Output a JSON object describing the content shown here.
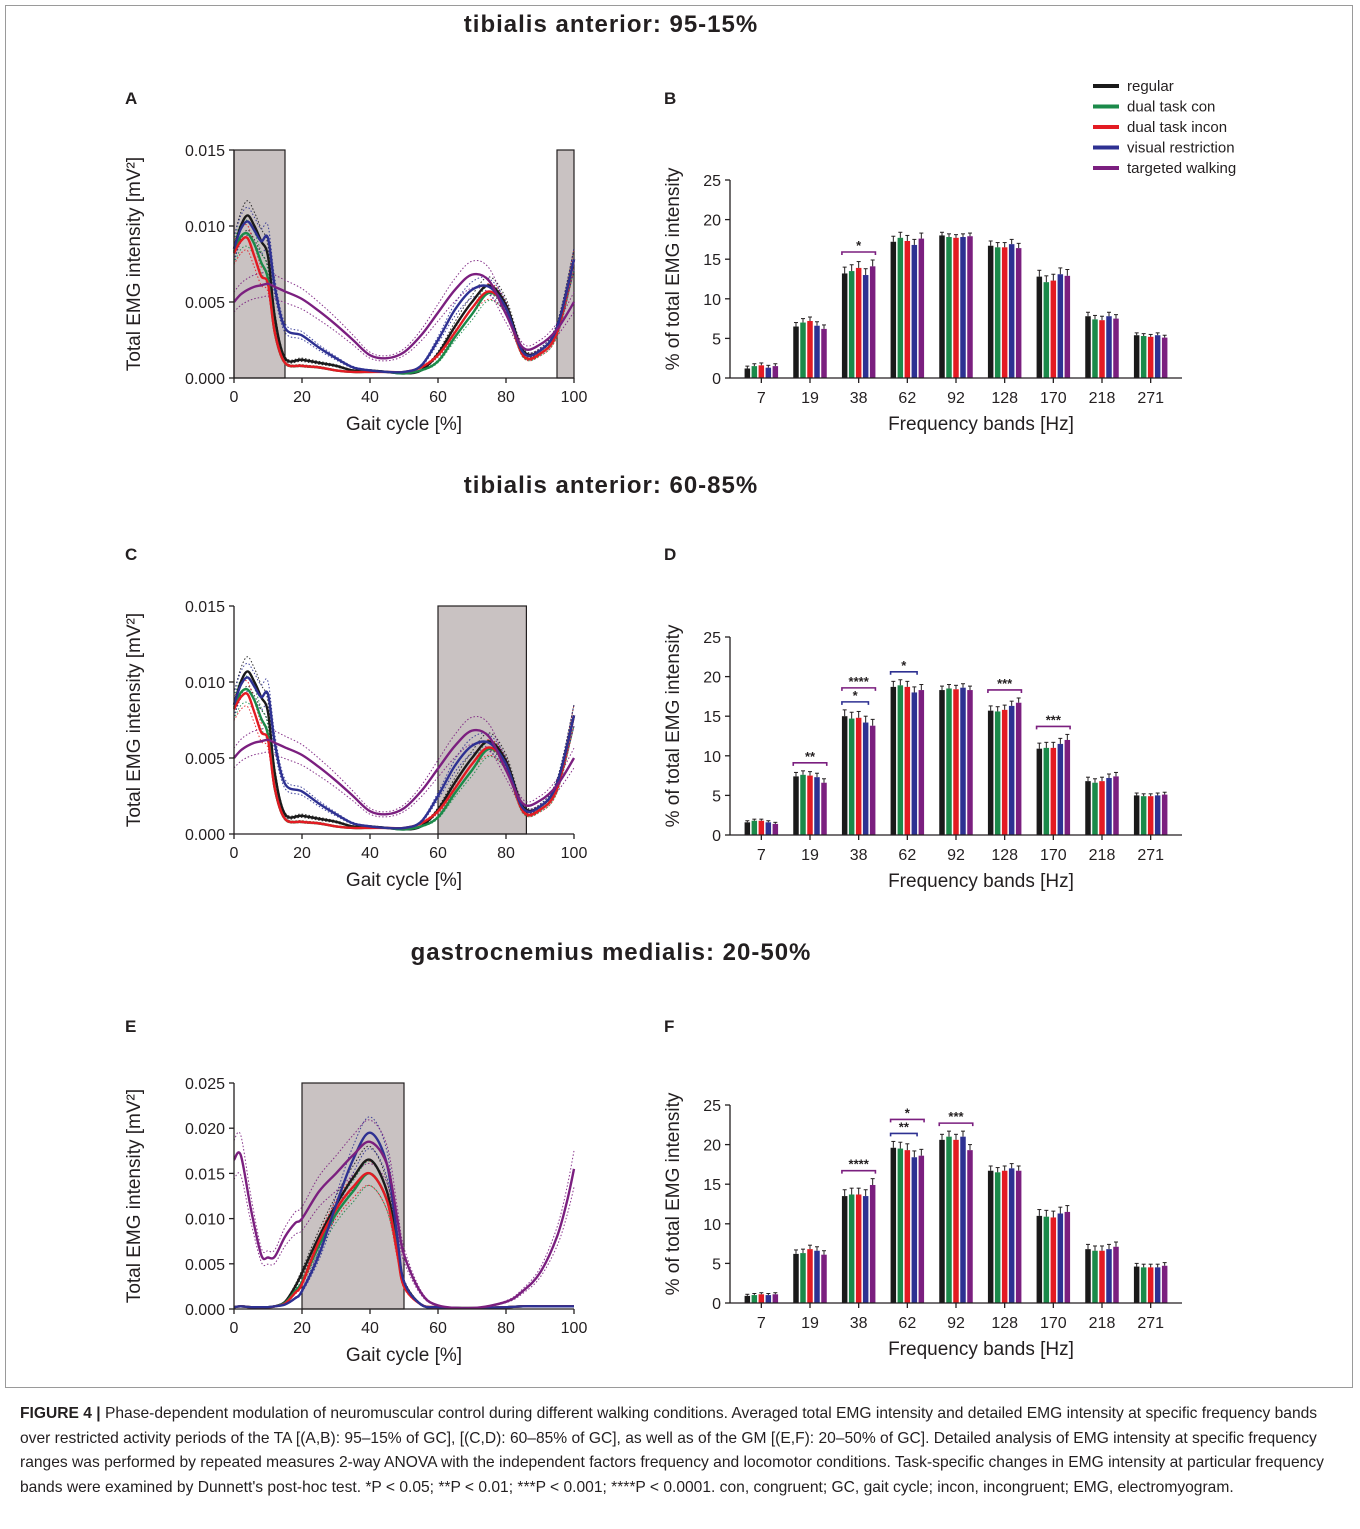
{
  "colors": {
    "regular": "#1a1a1a",
    "dual_con": "#1b8a4a",
    "dual_incon": "#e31b23",
    "visual": "#2e3192",
    "targeted": "#7b1f7f",
    "shade": "#c9c2c2"
  },
  "legend": [
    {
      "label": "regular",
      "color": "#1a1a1a"
    },
    {
      "label": "dual task con",
      "color": "#1b8a4a"
    },
    {
      "label": "dual task incon",
      "color": "#e31b23"
    },
    {
      "label": "visual restriction",
      "color": "#2e3192"
    },
    {
      "label": "targeted walking",
      "color": "#7b1f7f"
    }
  ],
  "caption": {
    "lead": "FIGURE 4 |",
    "text": "Phase-dependent modulation of neuromuscular control during different walking conditions. Averaged total EMG intensity and detailed EMG intensity at specific frequency bands over restricted activity periods of the TA [(A,B): 95–15% of GC], [(C,D): 60–85% of GC], as well as of the GM [(E,F): 20–50% of GC]. Detailed analysis of EMG intensity at specific frequency ranges was performed by repeated measures 2-way ANOVA with the independent factors frequency and locomotor conditions. Task-specific changes in EMG intensity at particular frequency bands were examined by Dunnett's post-hoc test. *P < 0.05; **P < 0.01; ***P < 0.001; ****P < 0.0001. con, congruent; GC, gait cycle; incon, incongruent; EMG, electromyogram."
  },
  "chart_data": [
    {
      "panel": "A",
      "section_title": "tibialis anterior: 95-15%",
      "type": "line",
      "xlabel": "Gait cycle [%]",
      "ylabel": "Total EMG intensity [mV²]",
      "xlim": [
        0,
        100
      ],
      "ylim": [
        0,
        0.015
      ],
      "xticks": [
        0,
        20,
        40,
        60,
        80,
        100
      ],
      "yticks": [
        "0.000",
        "0.005",
        "0.010",
        "0.015"
      ],
      "shaded": [
        [
          0,
          15
        ],
        [
          95,
          100
        ]
      ],
      "x": [
        0,
        2,
        4,
        6,
        8,
        10,
        12,
        15,
        20,
        25,
        30,
        35,
        40,
        45,
        50,
        55,
        60,
        65,
        70,
        75,
        80,
        85,
        90,
        95,
        100
      ],
      "series": [
        {
          "key": "regular",
          "values": [
            0.0085,
            0.01,
            0.0107,
            0.01,
            0.009,
            0.008,
            0.004,
            0.0013,
            0.0012,
            0.001,
            0.0008,
            0.0005,
            0.0005,
            0.0004,
            0.0003,
            0.0005,
            0.0016,
            0.0034,
            0.005,
            0.0061,
            0.0048,
            0.0018,
            0.0018,
            0.0033,
            0.0078
          ]
        },
        {
          "key": "dual_con",
          "values": [
            0.0083,
            0.0093,
            0.0095,
            0.0088,
            0.0076,
            0.0065,
            0.003,
            0.001,
            0.0008,
            0.0007,
            0.0005,
            0.0004,
            0.0004,
            0.0004,
            0.0003,
            0.0005,
            0.0011,
            0.0027,
            0.0042,
            0.0056,
            0.0046,
            0.0015,
            0.0016,
            0.003,
            0.0078
          ]
        },
        {
          "key": "dual_incon",
          "values": [
            0.0082,
            0.009,
            0.0092,
            0.008,
            0.0067,
            0.0062,
            0.003,
            0.001,
            0.0008,
            0.0007,
            0.0005,
            0.0004,
            0.0004,
            0.0004,
            0.0004,
            0.0007,
            0.0015,
            0.003,
            0.0046,
            0.0057,
            0.0046,
            0.0015,
            0.0016,
            0.003,
            0.0078
          ]
        },
        {
          "key": "visual",
          "values": [
            0.0085,
            0.0098,
            0.0103,
            0.0097,
            0.009,
            0.0092,
            0.006,
            0.0033,
            0.0028,
            0.002,
            0.0013,
            0.0007,
            0.0005,
            0.0004,
            0.0004,
            0.0008,
            0.0025,
            0.0045,
            0.0058,
            0.006,
            0.0046,
            0.0017,
            0.0018,
            0.0033,
            0.0078
          ]
        },
        {
          "key": "targeted",
          "values": [
            0.005,
            0.0055,
            0.0058,
            0.006,
            0.0061,
            0.0062,
            0.006,
            0.0057,
            0.0052,
            0.0044,
            0.0035,
            0.0025,
            0.0015,
            0.0013,
            0.0017,
            0.0028,
            0.0043,
            0.0058,
            0.0068,
            0.0064,
            0.0042,
            0.002,
            0.0022,
            0.0032,
            0.005
          ]
        }
      ]
    },
    {
      "panel": "B",
      "type": "bar",
      "xlabel": "Frequency bands [Hz]",
      "ylabel": "% of total EMG intensity",
      "ylim": [
        0,
        25
      ],
      "yticks": [
        0,
        5,
        10,
        15,
        20,
        25
      ],
      "categories": [
        "7",
        "19",
        "38",
        "62",
        "92",
        "128",
        "170",
        "218",
        "271"
      ],
      "series": [
        {
          "key": "regular",
          "values": [
            1.2,
            6.5,
            13.2,
            17.2,
            18.0,
            16.7,
            12.8,
            7.8,
            5.4
          ]
        },
        {
          "key": "dual_con",
          "values": [
            1.5,
            7.0,
            13.5,
            17.7,
            17.8,
            16.5,
            12.1,
            7.4,
            5.3
          ]
        },
        {
          "key": "dual_incon",
          "values": [
            1.6,
            7.2,
            13.9,
            17.3,
            17.7,
            16.5,
            12.3,
            7.3,
            5.2
          ]
        },
        {
          "key": "visual",
          "values": [
            1.3,
            6.6,
            13.0,
            16.8,
            17.8,
            16.9,
            13.1,
            7.8,
            5.4
          ]
        },
        {
          "key": "targeted",
          "values": [
            1.5,
            6.2,
            14.1,
            17.6,
            17.9,
            16.4,
            12.9,
            7.5,
            5.1
          ]
        }
      ],
      "errors": [
        0.3,
        0.5,
        0.8,
        0.7,
        0.4,
        0.6,
        0.8,
        0.5,
        0.3
      ],
      "significance": [
        {
          "category": "38",
          "to": "targeted",
          "label": "*",
          "color": "targeted",
          "level": 0
        }
      ]
    },
    {
      "panel": "C",
      "section_title": "tibialis anterior: 60-85%",
      "type": "line",
      "xlabel": "Gait cycle [%]",
      "ylabel": "Total EMG intensity [mV²]",
      "xlim": [
        0,
        100
      ],
      "ylim": [
        0,
        0.015
      ],
      "xticks": [
        0,
        20,
        40,
        60,
        80,
        100
      ],
      "yticks": [
        "0.000",
        "0.005",
        "0.010",
        "0.015"
      ],
      "shaded": [
        [
          60,
          86
        ]
      ],
      "x": [
        0,
        2,
        4,
        6,
        8,
        10,
        12,
        15,
        20,
        25,
        30,
        35,
        40,
        45,
        50,
        55,
        60,
        65,
        70,
        75,
        80,
        85,
        90,
        95,
        100
      ],
      "series": [
        {
          "key": "regular",
          "values": [
            0.0085,
            0.01,
            0.0107,
            0.01,
            0.009,
            0.008,
            0.004,
            0.0013,
            0.0012,
            0.001,
            0.0008,
            0.0005,
            0.0005,
            0.0004,
            0.0003,
            0.0005,
            0.0016,
            0.0034,
            0.005,
            0.0061,
            0.0048,
            0.0018,
            0.0018,
            0.0033,
            0.0078
          ]
        },
        {
          "key": "dual_con",
          "values": [
            0.0083,
            0.0093,
            0.0095,
            0.0088,
            0.0076,
            0.0065,
            0.003,
            0.001,
            0.0008,
            0.0007,
            0.0005,
            0.0004,
            0.0004,
            0.0004,
            0.0003,
            0.0005,
            0.0011,
            0.0027,
            0.0042,
            0.0056,
            0.0046,
            0.0015,
            0.0016,
            0.003,
            0.0078
          ]
        },
        {
          "key": "dual_incon",
          "values": [
            0.0082,
            0.009,
            0.0092,
            0.008,
            0.0067,
            0.0062,
            0.003,
            0.001,
            0.0008,
            0.0007,
            0.0005,
            0.0004,
            0.0004,
            0.0004,
            0.0004,
            0.0007,
            0.0015,
            0.003,
            0.0046,
            0.0057,
            0.0046,
            0.0015,
            0.0016,
            0.003,
            0.0078
          ]
        },
        {
          "key": "visual",
          "values": [
            0.0085,
            0.0098,
            0.0103,
            0.0097,
            0.009,
            0.0092,
            0.006,
            0.0033,
            0.0028,
            0.002,
            0.0013,
            0.0007,
            0.0005,
            0.0004,
            0.0004,
            0.0008,
            0.0025,
            0.0045,
            0.0058,
            0.006,
            0.0046,
            0.0017,
            0.0018,
            0.0033,
            0.0078
          ]
        },
        {
          "key": "targeted",
          "values": [
            0.005,
            0.0055,
            0.0058,
            0.006,
            0.0061,
            0.0062,
            0.006,
            0.0057,
            0.0052,
            0.0044,
            0.0035,
            0.0025,
            0.0015,
            0.0013,
            0.0017,
            0.0028,
            0.0043,
            0.0058,
            0.0068,
            0.0064,
            0.0042,
            0.002,
            0.0022,
            0.0032,
            0.005
          ]
        }
      ]
    },
    {
      "panel": "D",
      "type": "bar",
      "xlabel": "Frequency bands [Hz]",
      "ylabel": "% of total EMG intensity",
      "ylim": [
        0,
        25
      ],
      "yticks": [
        0,
        5,
        10,
        15,
        20,
        25
      ],
      "categories": [
        "7",
        "19",
        "38",
        "62",
        "92",
        "128",
        "170",
        "218",
        "271"
      ],
      "series": [
        {
          "key": "regular",
          "values": [
            1.6,
            7.4,
            15.0,
            18.7,
            18.3,
            15.7,
            10.9,
            6.8,
            5.0
          ]
        },
        {
          "key": "dual_con",
          "values": [
            1.8,
            7.6,
            14.7,
            18.9,
            18.5,
            15.6,
            11.0,
            6.6,
            4.9
          ]
        },
        {
          "key": "dual_incon",
          "values": [
            1.8,
            7.5,
            14.8,
            18.7,
            18.4,
            15.8,
            11.0,
            6.8,
            4.9
          ]
        },
        {
          "key": "visual",
          "values": [
            1.6,
            7.3,
            14.2,
            18.0,
            18.6,
            16.3,
            11.5,
            7.2,
            5.0
          ]
        },
        {
          "key": "targeted",
          "values": [
            1.4,
            6.6,
            13.8,
            18.3,
            18.3,
            16.7,
            12.0,
            7.4,
            5.1
          ]
        }
      ],
      "errors": [
        0.2,
        0.5,
        0.8,
        0.7,
        0.5,
        0.6,
        0.7,
        0.5,
        0.3
      ],
      "significance": [
        {
          "category": "19",
          "to": "targeted",
          "label": "**",
          "color": "targeted",
          "level": 0
        },
        {
          "category": "38",
          "to": "visual",
          "label": "*",
          "color": "visual",
          "level": 0
        },
        {
          "category": "38",
          "to": "targeted",
          "label": "****",
          "color": "targeted",
          "level": 1
        },
        {
          "category": "62",
          "to": "visual",
          "label": "*",
          "color": "visual",
          "level": 0
        },
        {
          "category": "128",
          "to": "targeted",
          "label": "***",
          "color": "targeted",
          "level": 0
        },
        {
          "category": "170",
          "to": "targeted",
          "label": "***",
          "color": "targeted",
          "level": 0
        }
      ]
    },
    {
      "panel": "E",
      "section_title": "gastrocnemius medialis: 20-50%",
      "type": "line",
      "xlabel": "Gait cycle [%]",
      "ylabel": "Total EMG intensity [mV²]",
      "xlim": [
        0,
        100
      ],
      "ylim": [
        0,
        0.025
      ],
      "xticks": [
        0,
        20,
        40,
        60,
        80,
        100
      ],
      "yticks": [
        "0.000",
        "0.005",
        "0.010",
        "0.015",
        "0.020",
        "0.025"
      ],
      "shaded": [
        [
          20,
          50
        ]
      ],
      "x": [
        0,
        2,
        5,
        8,
        10,
        12,
        15,
        18,
        20,
        25,
        30,
        35,
        40,
        45,
        48,
        50,
        55,
        60,
        70,
        80,
        85,
        90,
        95,
        98,
        100
      ],
      "series": [
        {
          "key": "regular",
          "values": [
            0.0002,
            0.0003,
            0.0002,
            0.0002,
            0.0002,
            0.0003,
            0.0008,
            0.0025,
            0.004,
            0.008,
            0.0115,
            0.0145,
            0.0165,
            0.013,
            0.007,
            0.003,
            0.0005,
            0.0002,
            0.0001,
            0.0002,
            0.0003,
            0.0003,
            0.0003,
            0.0003,
            0.0003
          ]
        },
        {
          "key": "dual_con",
          "values": [
            0.0002,
            0.0003,
            0.0002,
            0.0002,
            0.0002,
            0.0003,
            0.0007,
            0.002,
            0.003,
            0.007,
            0.0105,
            0.013,
            0.015,
            0.012,
            0.0065,
            0.0028,
            0.0005,
            0.0002,
            0.0001,
            0.0002,
            0.0003,
            0.0003,
            0.0003,
            0.0003,
            0.0003
          ]
        },
        {
          "key": "dual_incon",
          "values": [
            0.0002,
            0.0003,
            0.0002,
            0.0002,
            0.0002,
            0.0003,
            0.0006,
            0.0018,
            0.0028,
            0.0075,
            0.011,
            0.0135,
            0.015,
            0.012,
            0.0062,
            0.0025,
            0.0005,
            0.0002,
            0.0001,
            0.0002,
            0.0003,
            0.0003,
            0.0003,
            0.0003,
            0.0003
          ]
        },
        {
          "key": "visual",
          "values": [
            0.0002,
            0.0003,
            0.0002,
            0.0002,
            0.0002,
            0.0003,
            0.0005,
            0.0012,
            0.002,
            0.006,
            0.0115,
            0.0165,
            0.0195,
            0.016,
            0.008,
            0.003,
            0.0005,
            0.0002,
            0.0001,
            0.0002,
            0.0003,
            0.0003,
            0.0003,
            0.0003,
            0.0003
          ]
        },
        {
          "key": "targeted",
          "values": [
            0.0165,
            0.017,
            0.011,
            0.006,
            0.0057,
            0.0058,
            0.008,
            0.0095,
            0.01,
            0.013,
            0.015,
            0.017,
            0.0185,
            0.016,
            0.01,
            0.006,
            0.0018,
            0.0004,
            0.0001,
            0.0008,
            0.002,
            0.004,
            0.008,
            0.012,
            0.0155
          ]
        }
      ]
    },
    {
      "panel": "F",
      "type": "bar",
      "xlabel": "Frequency bands [Hz]",
      "ylabel": "% of total EMG intensity",
      "ylim": [
        0,
        25
      ],
      "yticks": [
        0,
        5,
        10,
        15,
        20,
        25
      ],
      "categories": [
        "7",
        "19",
        "38",
        "62",
        "92",
        "128",
        "170",
        "218",
        "271"
      ],
      "series": [
        {
          "key": "regular",
          "values": [
            0.9,
            6.2,
            13.5,
            19.6,
            20.6,
            16.7,
            11.0,
            6.8,
            4.6
          ]
        },
        {
          "key": "dual_con",
          "values": [
            1.0,
            6.3,
            13.7,
            19.5,
            21.0,
            16.5,
            10.9,
            6.6,
            4.5
          ]
        },
        {
          "key": "dual_incon",
          "values": [
            1.1,
            6.8,
            13.7,
            19.3,
            20.6,
            16.7,
            10.8,
            6.6,
            4.5
          ]
        },
        {
          "key": "visual",
          "values": [
            1.0,
            6.6,
            13.5,
            18.4,
            21.0,
            17.0,
            11.3,
            6.8,
            4.5
          ]
        },
        {
          "key": "targeted",
          "values": [
            1.1,
            6.1,
            14.9,
            18.6,
            19.3,
            16.7,
            11.5,
            7.1,
            4.7
          ]
        }
      ],
      "errors": [
        0.2,
        0.5,
        0.8,
        0.8,
        0.7,
        0.6,
        0.8,
        0.6,
        0.4
      ],
      "significance": [
        {
          "category": "38",
          "to": "targeted",
          "label": "****",
          "color": "targeted",
          "level": 0
        },
        {
          "category": "62",
          "to": "visual",
          "label": "**",
          "color": "visual",
          "level": 0
        },
        {
          "category": "62",
          "to": "targeted",
          "label": "*",
          "color": "targeted",
          "level": 1
        },
        {
          "category": "92",
          "to": "targeted",
          "label": "***",
          "color": "targeted",
          "level": 0
        }
      ]
    }
  ]
}
